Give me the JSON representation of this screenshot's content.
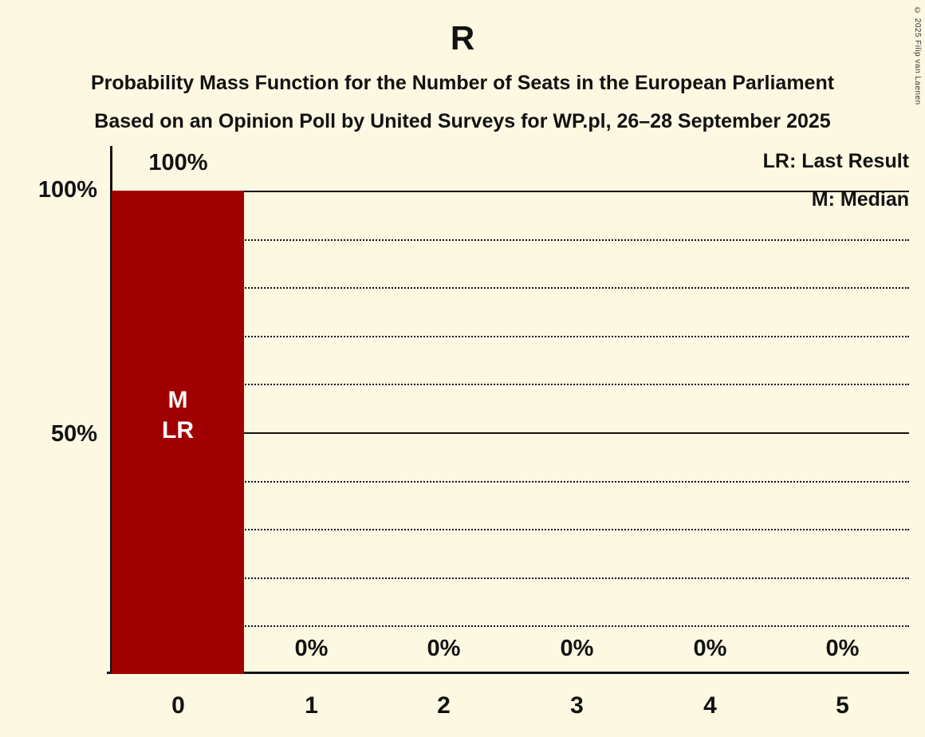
{
  "title": "R",
  "subtitle1": "Probability Mass Function for the Number of Seats in the European Parliament",
  "subtitle2": "Based on an Opinion Poll by United Surveys for WP.pl, 26–28 September 2025",
  "copyright": "© 2025 Filip van Laenen",
  "legend": {
    "lr": "LR: Last Result",
    "m": "M: Median"
  },
  "y_axis": {
    "top_label": "100%",
    "mid_label": "50%"
  },
  "bar_annotations": {
    "median": "M",
    "last_result": "LR"
  },
  "chart_data": {
    "type": "bar",
    "title": "R",
    "subtitle": "Probability Mass Function for the Number of Seats in the European Parliament",
    "source_note": "Based on an Opinion Poll by United Surveys for WP.pl, 26–28 September 2025",
    "categories": [
      "0",
      "1",
      "2",
      "3",
      "4",
      "5"
    ],
    "values": [
      100,
      0,
      0,
      0,
      0,
      0
    ],
    "value_labels": [
      "100%",
      "0%",
      "0%",
      "0%",
      "0%",
      "0%"
    ],
    "xlabel": "",
    "ylabel": "",
    "ylim": [
      0,
      100
    ],
    "ytick_labels": [
      "100%",
      "50%"
    ],
    "grid": "dotted horizontal lines every 10%, solid at 50% and 100%",
    "legend_position": "top-right",
    "bar_color": "#a00000",
    "background_color": "#fdf8e2",
    "annotations": "bar at 0 seats carries M (Median) and LR (Last Result) markers"
  }
}
